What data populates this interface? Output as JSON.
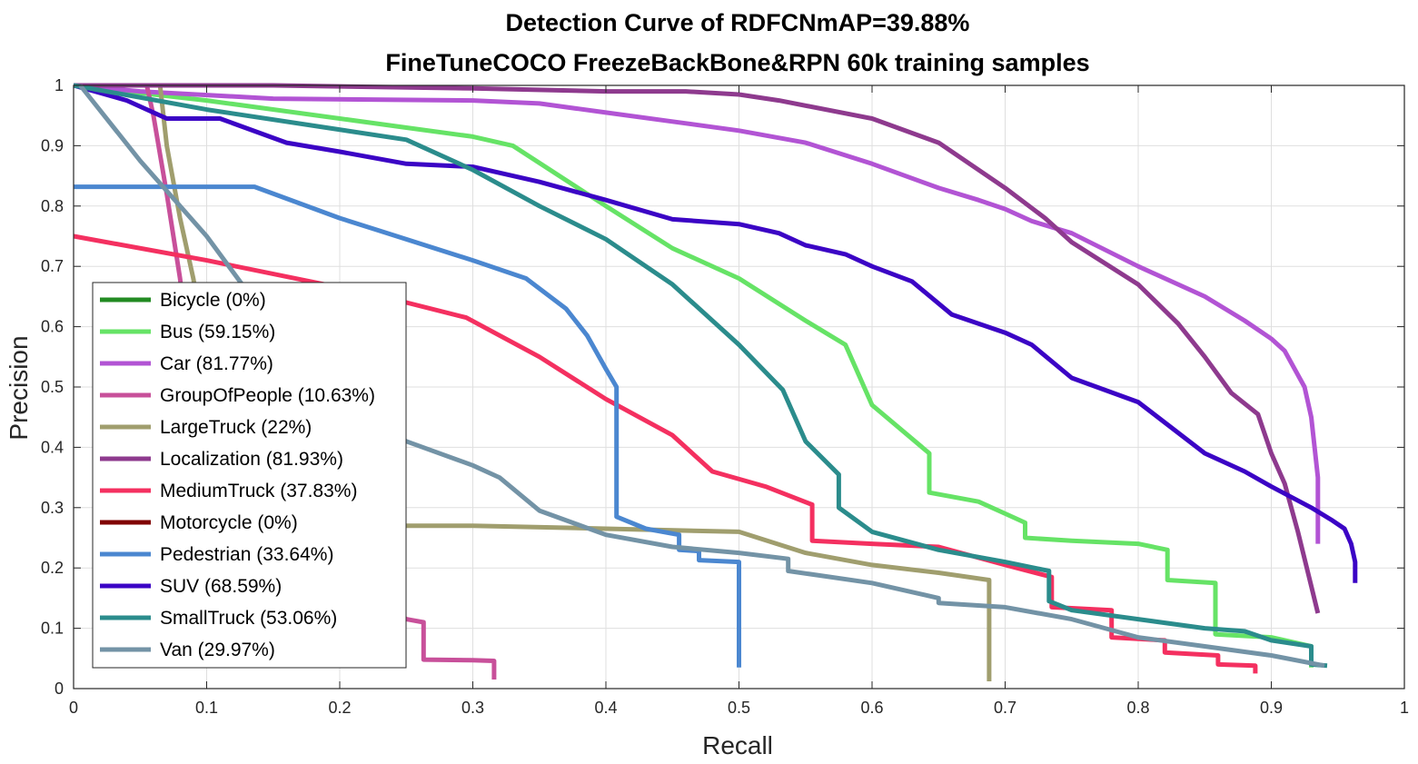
{
  "chart_data": {
    "type": "line",
    "title": "Detection Curve of RDFCNmAP=39.88%",
    "subtitle": "FineTuneCOCO FreezeBackBone&RPN 60k training samples",
    "xlabel": "Recall",
    "ylabel": "Precision",
    "xlim": [
      0,
      1
    ],
    "ylim": [
      0,
      1
    ],
    "grid": true,
    "legend_position": "lower-left",
    "x_ticks": [
      "0",
      "0.1",
      "0.2",
      "0.3",
      "0.4",
      "0.5",
      "0.6",
      "0.7",
      "0.8",
      "0.9",
      "1"
    ],
    "y_ticks": [
      "0",
      "0.1",
      "0.2",
      "0.3",
      "0.4",
      "0.5",
      "0.6",
      "0.7",
      "0.8",
      "0.9",
      "1"
    ],
    "series": [
      {
        "name": "Bicycle (0%)",
        "color": "#228B22",
        "x": [],
        "y": []
      },
      {
        "name": "Bus (59.15%)",
        "color": "#66E366",
        "x": [
          0,
          0.1,
          0.2,
          0.25,
          0.3,
          0.33,
          0.4,
          0.45,
          0.5,
          0.55,
          0.58,
          0.6,
          0.643,
          0.643,
          0.68,
          0.7,
          0.715,
          0.715,
          0.75,
          0.8,
          0.822,
          0.822,
          0.858,
          0.858,
          0.9,
          0.93,
          0.93
        ],
        "y": [
          1,
          0.975,
          0.945,
          0.93,
          0.915,
          0.9,
          0.8,
          0.73,
          0.68,
          0.61,
          0.57,
          0.47,
          0.39,
          0.325,
          0.31,
          0.29,
          0.275,
          0.25,
          0.245,
          0.24,
          0.23,
          0.18,
          0.175,
          0.09,
          0.085,
          0.07,
          0.035
        ]
      },
      {
        "name": "Car (81.77%)",
        "color": "#B254D4",
        "x": [
          0,
          0.05,
          0.15,
          0.3,
          0.35,
          0.4,
          0.45,
          0.5,
          0.55,
          0.6,
          0.65,
          0.68,
          0.7,
          0.72,
          0.75,
          0.8,
          0.85,
          0.88,
          0.9,
          0.91,
          0.925,
          0.93,
          0.935,
          0.935
        ],
        "y": [
          1,
          0.99,
          0.978,
          0.975,
          0.97,
          0.955,
          0.94,
          0.925,
          0.905,
          0.87,
          0.83,
          0.81,
          0.795,
          0.775,
          0.755,
          0.7,
          0.65,
          0.61,
          0.58,
          0.56,
          0.5,
          0.45,
          0.35,
          0.24
        ]
      },
      {
        "name": "GroupOfPeople (10.63%)",
        "color": "#C8509A",
        "x": [
          0.055,
          0.06,
          0.07,
          0.08,
          0.09,
          0.1,
          0.15,
          0.2,
          0.25,
          0.263,
          0.263,
          0.3,
          0.316,
          0.316
        ],
        "y": [
          1,
          0.95,
          0.82,
          0.68,
          0.5,
          0.35,
          0.25,
          0.2,
          0.115,
          0.11,
          0.048,
          0.047,
          0.046,
          0.015
        ]
      },
      {
        "name": "LargeTruck (22%)",
        "color": "#A09E6E",
        "x": [
          0.065,
          0.07,
          0.08,
          0.09,
          0.1,
          0.12,
          0.15,
          0.2,
          0.3,
          0.4,
          0.5,
          0.55,
          0.6,
          0.65,
          0.688,
          0.688
        ],
        "y": [
          1,
          0.9,
          0.78,
          0.68,
          0.55,
          0.4,
          0.3,
          0.27,
          0.27,
          0.265,
          0.26,
          0.225,
          0.205,
          0.192,
          0.18,
          0.012
        ]
      },
      {
        "name": "Localization (81.93%)",
        "color": "#8E3A8E",
        "x": [
          0,
          0.15,
          0.3,
          0.4,
          0.46,
          0.5,
          0.53,
          0.6,
          0.65,
          0.7,
          0.73,
          0.75,
          0.8,
          0.83,
          0.85,
          0.87,
          0.89,
          0.9,
          0.91,
          0.92,
          0.93,
          0.935
        ],
        "y": [
          1,
          1,
          0.995,
          0.99,
          0.99,
          0.985,
          0.975,
          0.945,
          0.905,
          0.83,
          0.78,
          0.74,
          0.67,
          0.605,
          0.55,
          0.49,
          0.455,
          0.39,
          0.34,
          0.26,
          0.17,
          0.125
        ]
      },
      {
        "name": "MediumTruck (37.83%)",
        "color": "#F43060",
        "x": [
          0,
          0.1,
          0.2,
          0.25,
          0.295,
          0.35,
          0.4,
          0.45,
          0.48,
          0.52,
          0.555,
          0.555,
          0.6,
          0.65,
          0.7,
          0.735,
          0.735,
          0.78,
          0.78,
          0.82,
          0.82,
          0.86,
          0.86,
          0.888,
          0.888
        ],
        "y": [
          0.75,
          0.71,
          0.665,
          0.64,
          0.615,
          0.55,
          0.48,
          0.42,
          0.36,
          0.335,
          0.305,
          0.245,
          0.24,
          0.235,
          0.205,
          0.185,
          0.135,
          0.13,
          0.085,
          0.08,
          0.06,
          0.055,
          0.04,
          0.038,
          0.025
        ]
      },
      {
        "name": "Motorcycle (0%)",
        "color": "#800000",
        "x": [],
        "y": []
      },
      {
        "name": "Pedestrian (33.64%)",
        "color": "#4B87D0",
        "x": [
          0,
          0.136,
          0.2,
          0.3,
          0.34,
          0.37,
          0.386,
          0.4,
          0.408,
          0.408,
          0.43,
          0.455,
          0.455,
          0.47,
          0.47,
          0.5,
          0.5
        ],
        "y": [
          0.832,
          0.832,
          0.78,
          0.71,
          0.68,
          0.63,
          0.585,
          0.53,
          0.5,
          0.285,
          0.265,
          0.255,
          0.23,
          0.228,
          0.213,
          0.21,
          0.035
        ]
      },
      {
        "name": "SUV (68.59%)",
        "color": "#3B04C5",
        "x": [
          0,
          0.04,
          0.07,
          0.11,
          0.16,
          0.2,
          0.25,
          0.3,
          0.35,
          0.4,
          0.45,
          0.5,
          0.53,
          0.55,
          0.58,
          0.6,
          0.63,
          0.66,
          0.7,
          0.72,
          0.75,
          0.8,
          0.85,
          0.88,
          0.9,
          0.93,
          0.945,
          0.955,
          0.96,
          0.963,
          0.963
        ],
        "y": [
          1,
          0.975,
          0.945,
          0.945,
          0.905,
          0.89,
          0.87,
          0.865,
          0.84,
          0.81,
          0.778,
          0.77,
          0.755,
          0.735,
          0.72,
          0.7,
          0.675,
          0.62,
          0.59,
          0.57,
          0.515,
          0.475,
          0.39,
          0.36,
          0.335,
          0.3,
          0.28,
          0.265,
          0.24,
          0.21,
          0.175
        ]
      },
      {
        "name": "SmallTruck (53.06%)",
        "color": "#2B8C8C",
        "x": [
          0,
          0.1,
          0.25,
          0.3,
          0.35,
          0.4,
          0.45,
          0.5,
          0.533,
          0.55,
          0.575,
          0.575,
          0.6,
          0.65,
          0.7,
          0.733,
          0.733,
          0.75,
          0.8,
          0.85,
          0.88,
          0.9,
          0.93,
          0.93,
          0.942
        ],
        "y": [
          1,
          0.96,
          0.91,
          0.86,
          0.8,
          0.745,
          0.67,
          0.57,
          0.495,
          0.41,
          0.355,
          0.3,
          0.26,
          0.23,
          0.21,
          0.195,
          0.145,
          0.13,
          0.115,
          0.1,
          0.095,
          0.08,
          0.07,
          0.04,
          0.038
        ]
      },
      {
        "name": "Van (29.97%)",
        "color": "#7393A6",
        "x": [
          0.005,
          0.05,
          0.1,
          0.15,
          0.2,
          0.25,
          0.3,
          0.32,
          0.35,
          0.4,
          0.45,
          0.5,
          0.537,
          0.537,
          0.6,
          0.65,
          0.65,
          0.7,
          0.75,
          0.8,
          0.85,
          0.9,
          0.94
        ],
        "y": [
          1,
          0.875,
          0.75,
          0.6,
          0.48,
          0.41,
          0.37,
          0.35,
          0.295,
          0.255,
          0.235,
          0.225,
          0.215,
          0.195,
          0.175,
          0.15,
          0.142,
          0.135,
          0.115,
          0.085,
          0.07,
          0.055,
          0.038
        ]
      }
    ]
  }
}
